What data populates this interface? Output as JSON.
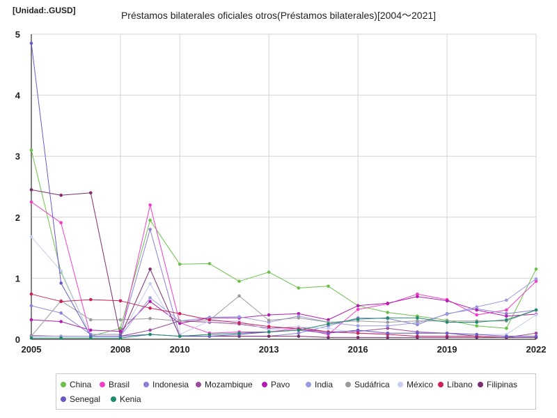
{
  "unit_label": "[Unidad:.GUSD]",
  "chart_data": {
    "type": "line",
    "title": "Préstamos bilaterales oficiales otros(Préstamos bilaterales)[2004～2021]",
    "xlabel": "",
    "ylabel": "",
    "x_ticks": [
      2005,
      2008,
      2010,
      2013,
      2016,
      2019,
      2022
    ],
    "y_ticks": [
      0,
      1,
      2,
      3,
      4,
      5
    ],
    "ylim": [
      0,
      5
    ],
    "grid": true,
    "legend_position": "bottom",
    "x": [
      2004,
      2005,
      2006,
      2007,
      2008,
      2009,
      2010,
      2011,
      2012,
      2013,
      2014,
      2015,
      2016,
      2017,
      2018,
      2019,
      2020,
      2021
    ],
    "series": [
      {
        "name": "China",
        "color": "#6cc04a",
        "values": [
          3.1,
          1.1,
          0.05,
          0.18,
          1.95,
          1.23,
          1.24,
          0.95,
          1.1,
          0.84,
          0.87,
          0.55,
          0.44,
          0.38,
          0.31,
          0.22,
          0.18,
          1.15
        ]
      },
      {
        "name": "Brasil",
        "color": "#f23cc8",
        "values": [
          2.25,
          1.91,
          0.05,
          0.05,
          2.2,
          0.27,
          0.1,
          0.12,
          0.12,
          0.18,
          0.08,
          0.49,
          0.58,
          0.74,
          0.65,
          0.4,
          0.48,
          0.95
        ]
      },
      {
        "name": "Indonesia",
        "color": "#8a7fd6",
        "values": [
          0.55,
          0.43,
          0.08,
          0.08,
          1.8,
          0.06,
          0.05,
          0.05,
          0.05,
          0.1,
          0.22,
          0.35,
          0.34,
          0.24,
          0.42,
          0.5,
          0.42,
          0.48
        ]
      },
      {
        "name": "Mozambique",
        "color": "#9b4a9e",
        "values": [
          0.06,
          0.05,
          0.05,
          0.05,
          0.15,
          0.3,
          0.28,
          0.25,
          0.18,
          0.2,
          0.12,
          0.13,
          0.18,
          0.12,
          0.1,
          0.05,
          0.03,
          0.1
        ]
      },
      {
        "name": "Pavo",
        "color": "#b01fb0",
        "values": [
          0.32,
          0.29,
          0.15,
          0.13,
          0.62,
          0.26,
          0.35,
          0.35,
          0.4,
          0.42,
          0.32,
          0.55,
          0.59,
          0.7,
          0.63,
          0.48,
          0.38,
          0.41
        ]
      },
      {
        "name": "India",
        "color": "#9b9be0",
        "values": [
          0.05,
          0.05,
          0.05,
          0.05,
          0.68,
          0.3,
          0.36,
          0.37,
          0.28,
          0.38,
          0.28,
          0.22,
          0.22,
          0.27,
          0.41,
          0.53,
          0.64,
          0.99
        ]
      },
      {
        "name": "Sudáfrica",
        "color": "#9a9a9a",
        "values": [
          0.05,
          0.63,
          0.32,
          0.32,
          0.34,
          0.3,
          0.31,
          0.71,
          0.31,
          0.35,
          0.28,
          0.3,
          0.28,
          0.3,
          0.3,
          0.3,
          0.3,
          0.48
        ]
      },
      {
        "name": "México",
        "color": "#c4ccf2",
        "values": [
          1.68,
          1.12,
          0.05,
          0.05,
          0.91,
          0.08,
          0.3,
          0.3,
          0.15,
          0.2,
          0.18,
          0.1,
          0.1,
          0.1,
          0.1,
          0.08,
          0.08,
          0.4
        ]
      },
      {
        "name": "Líbano",
        "color": "#cc1f5a",
        "values": [
          0.74,
          0.62,
          0.65,
          0.63,
          0.51,
          0.42,
          0.32,
          0.27,
          0.21,
          0.17,
          0.12,
          0.1,
          0.08,
          0.05,
          0.05,
          0.05,
          0.03,
          0.03
        ]
      },
      {
        "name": "Filipinas",
        "color": "#7a2c6e",
        "values": [
          2.45,
          2.36,
          2.4,
          0.05,
          1.15,
          0.05,
          0.05,
          0.05,
          0.05,
          0.05,
          0.03,
          0.03,
          0.03,
          0.03,
          0.03,
          0.03,
          0.03,
          0.03
        ]
      },
      {
        "name": "Senegal",
        "color": "#6b58c9",
        "values": [
          4.85,
          0.92,
          0.05,
          0.05,
          0.08,
          0.05,
          0.05,
          0.08,
          0.12,
          0.15,
          0.1,
          0.15,
          0.1,
          0.1,
          0.1,
          0.08,
          0.05,
          0.05
        ]
      },
      {
        "name": "Kenia",
        "color": "#1f8a6b",
        "values": [
          0.02,
          0.02,
          0.02,
          0.02,
          0.08,
          0.05,
          0.08,
          0.1,
          0.12,
          0.15,
          0.25,
          0.33,
          0.35,
          0.35,
          0.28,
          0.28,
          0.32,
          0.48
        ]
      }
    ]
  }
}
